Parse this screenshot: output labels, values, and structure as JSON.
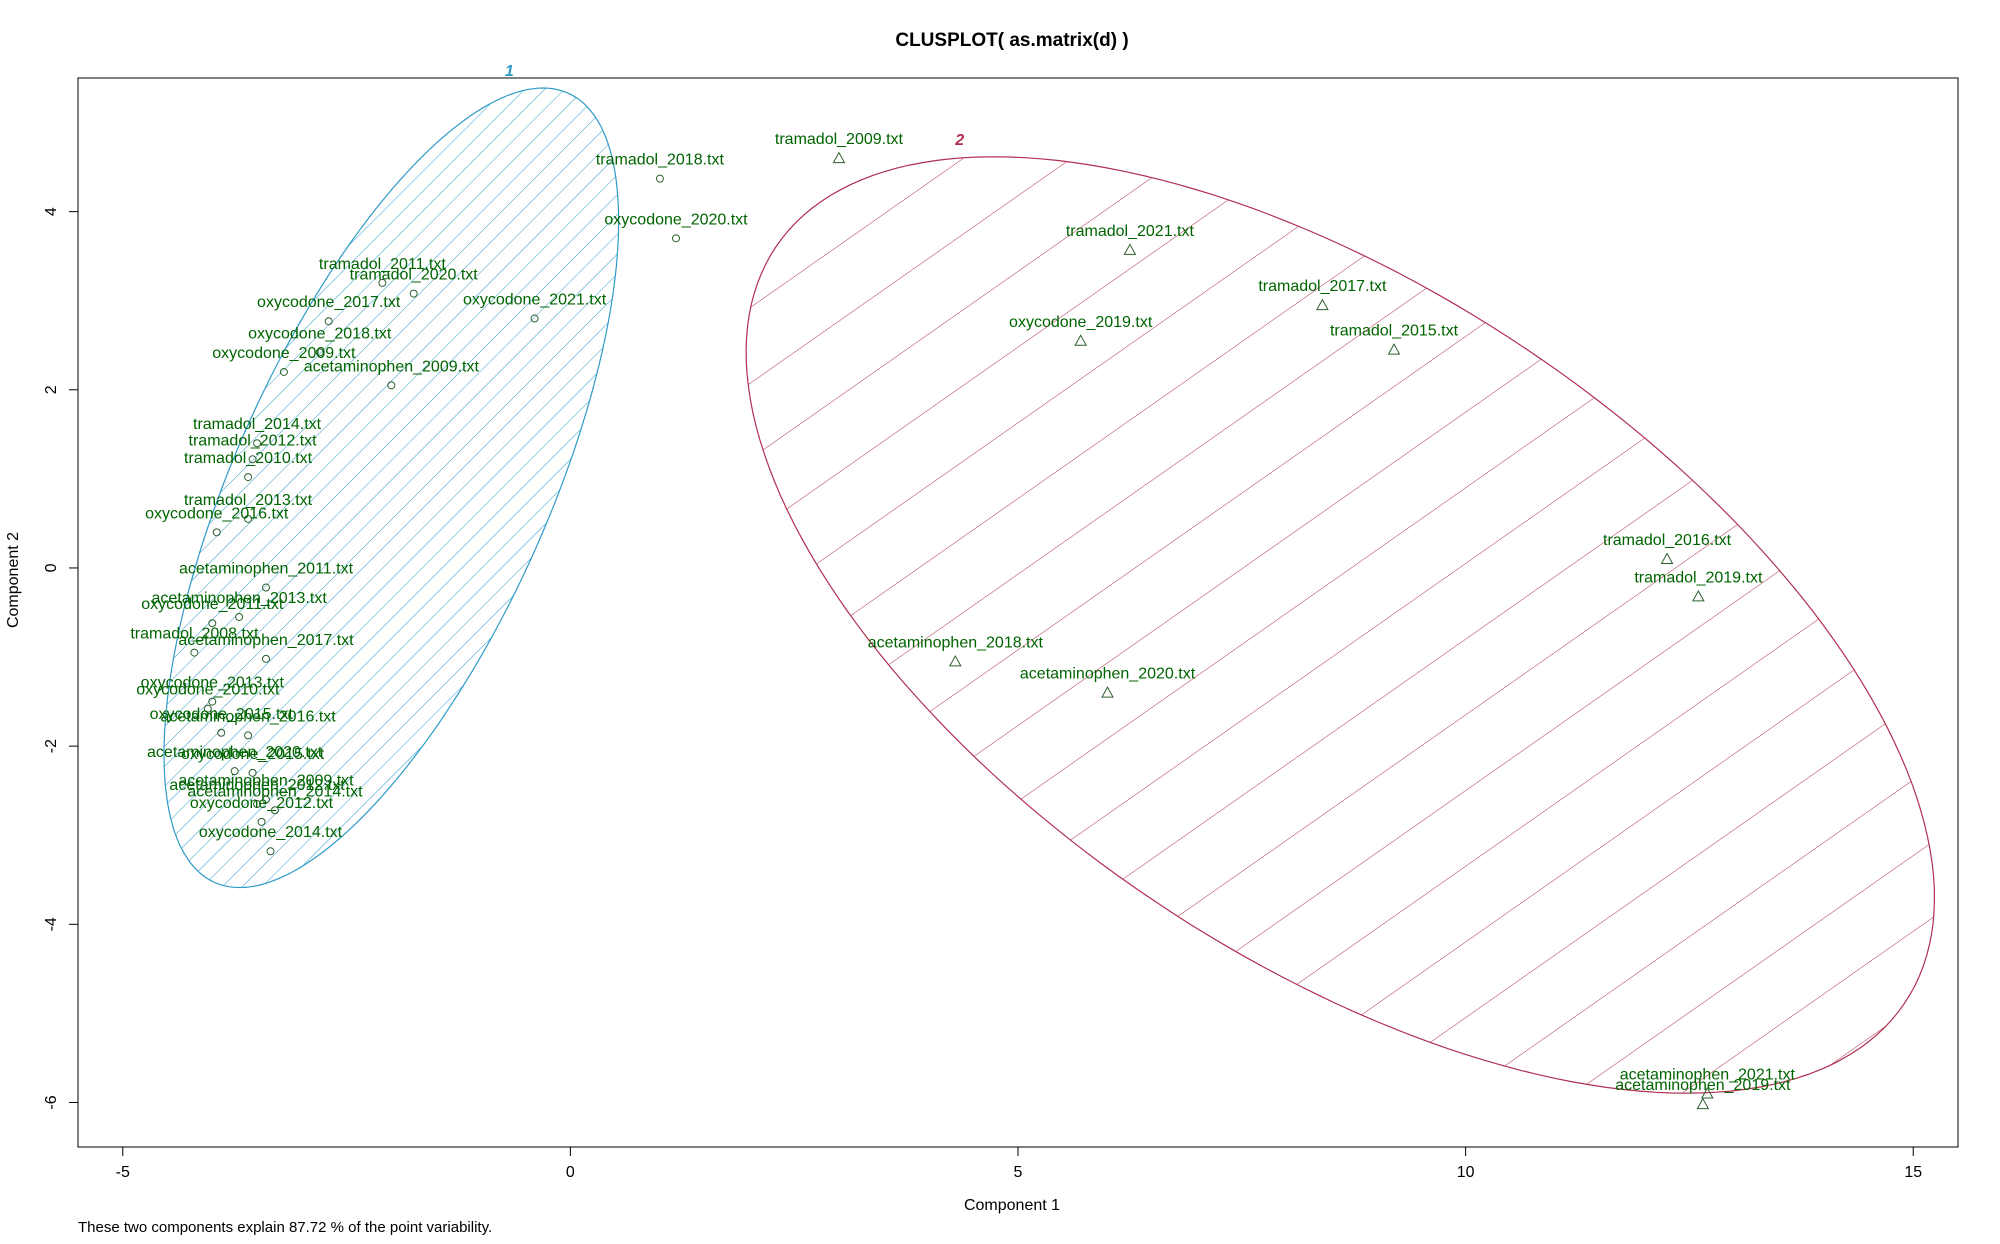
{
  "chart_data": {
    "type": "scatter",
    "title": "CLUSPLOT( as.matrix(d) )",
    "xlabel": "Component 1",
    "ylabel": "Component 2",
    "xlim": [
      -5.5,
      15.5
    ],
    "ylim": [
      -6.5,
      5.5
    ],
    "xticks": [
      -5,
      0,
      5,
      10,
      15
    ],
    "yticks": [
      -6,
      -4,
      -2,
      0,
      2,
      4
    ],
    "footnote": "These two components explain 87.72 % of the point variability.",
    "grid": false,
    "colors": {
      "cluster1": "#2f9ac8",
      "cluster2": "#b03050",
      "labels": "#006400",
      "points": "#2f5f2f"
    },
    "clusters": [
      {
        "name": "1",
        "marker": "circle",
        "ellipse": {
          "center": [
            -2.0,
            0.9
          ],
          "a": 4.85,
          "b": 1.75,
          "angle_deg": 66
        },
        "points": [
          {
            "label": "tramadol_2018.txt",
            "x": 1.0,
            "y": 4.37
          },
          {
            "label": "oxycodone_2020.txt",
            "x": 1.18,
            "y": 3.7
          },
          {
            "label": "tramadol_2011.txt",
            "x": -2.1,
            "y": 3.2
          },
          {
            "label": "tramadol_2020.txt",
            "x": -1.75,
            "y": 3.08
          },
          {
            "label": "oxycodone_2017.txt",
            "x": -2.7,
            "y": 2.77
          },
          {
            "label": "oxycodone_2021.txt",
            "x": -0.4,
            "y": 2.8
          },
          {
            "label": "oxycodone_2018.txt",
            "x": -2.8,
            "y": 2.42
          },
          {
            "label": "oxycodone_2009.txt",
            "x": -3.2,
            "y": 2.2
          },
          {
            "label": "acetaminophen_2009.txt",
            "x": -2.0,
            "y": 2.05
          },
          {
            "label": "tramadol_2014.txt",
            "x": -3.5,
            "y": 1.4
          },
          {
            "label": "tramadol_2012.txt",
            "x": -3.55,
            "y": 1.22
          },
          {
            "label": "tramadol_2010.txt",
            "x": -3.6,
            "y": 1.02
          },
          {
            "label": "tramadol_2013.txt",
            "x": -3.6,
            "y": 0.55
          },
          {
            "label": "oxycodone_2016.txt",
            "x": -3.95,
            "y": 0.4
          },
          {
            "label": "acetaminophen_2011.txt",
            "x": -3.4,
            "y": -0.22
          },
          {
            "label": "acetaminophen_2013.txt",
            "x": -3.7,
            "y": -0.55
          },
          {
            "label": "oxycodone_2011.txt",
            "x": -4.0,
            "y": -0.62
          },
          {
            "label": "tramadol_2008.txt",
            "x": -4.2,
            "y": -0.95
          },
          {
            "label": "acetaminophen_2017.txt",
            "x": -3.4,
            "y": -1.02
          },
          {
            "label": "oxycodone_2013.txt",
            "x": -4.0,
            "y": -1.5
          },
          {
            "label": "oxycodone_2010.txt",
            "x": -4.05,
            "y": -1.58
          },
          {
            "label": "oxycodone_2015.txt",
            "x": -3.9,
            "y": -1.85
          },
          {
            "label": "acetaminophen_2016.txt",
            "x": -3.6,
            "y": -1.88
          },
          {
            "label": "acetaminophen_2020.txt",
            "x": -3.75,
            "y": -2.28
          },
          {
            "label": "oxycodone_2015.txt",
            "x": -3.55,
            "y": -2.3
          },
          {
            "label": "acetaminophen_2009.txt",
            "x": -3.4,
            "y": -2.6
          },
          {
            "label": "acetaminophen_2012.txt",
            "x": -3.5,
            "y": -2.65
          },
          {
            "label": "acetaminophen_2014.txt",
            "x": -3.3,
            "y": -2.72
          },
          {
            "label": "oxycodone_2012.txt",
            "x": -3.45,
            "y": -2.85
          },
          {
            "label": "oxycodone_2014.txt",
            "x": -3.35,
            "y": -3.18
          }
        ]
      },
      {
        "name": "2",
        "marker": "triangle",
        "ellipse": {
          "center": [
            8.6,
            -0.64
          ],
          "a": 7.6,
          "b": 3.73,
          "angle_deg": -34
        },
        "points": [
          {
            "label": "tramadol_2009.txt",
            "x": 3.0,
            "y": 4.6
          },
          {
            "label": "tramadol_2021.txt",
            "x": 6.25,
            "y": 3.57
          },
          {
            "label": "tramadol_2017.txt",
            "x": 8.4,
            "y": 2.95
          },
          {
            "label": "oxycodone_2019.txt",
            "x": 5.7,
            "y": 2.55
          },
          {
            "label": "tramadol_2015.txt",
            "x": 9.2,
            "y": 2.45
          },
          {
            "label": "tramadol_2016.txt",
            "x": 12.25,
            "y": 0.1
          },
          {
            "label": "tramadol_2019.txt",
            "x": 12.6,
            "y": -0.32
          },
          {
            "label": "acetaminophen_2018.txt",
            "x": 4.3,
            "y": -1.05
          },
          {
            "label": "acetaminophen_2020.txt",
            "x": 6.0,
            "y": -1.4
          },
          {
            "label": "acetaminophen_2021.txt",
            "x": 12.7,
            "y": -5.9
          },
          {
            "label": "acetaminophen_2019.txt",
            "x": 12.65,
            "y": -6.02
          }
        ]
      }
    ]
  }
}
